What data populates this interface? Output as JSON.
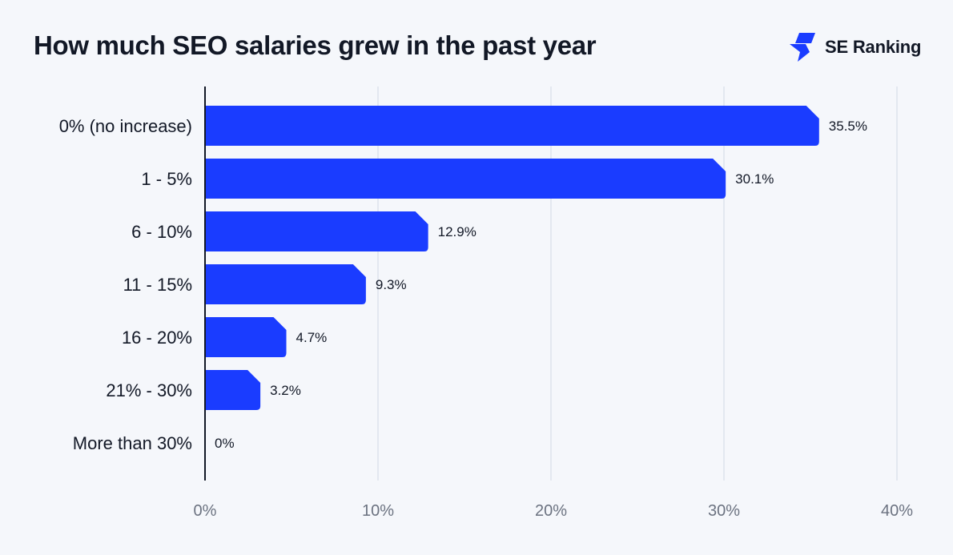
{
  "header": {
    "title": "How much SEO salaries grew in the past year",
    "brand_name": "SE Ranking",
    "brand_icon": "se-ranking-logo-icon",
    "brand_color": "#1a3cff"
  },
  "colors": {
    "bar": "#1a3cff",
    "grid": "#dde3ec",
    "axis": "#121826",
    "tick": "#6b7280",
    "text": "#121826",
    "background": "#f5f7fb"
  },
  "chart_data": {
    "type": "bar",
    "orientation": "horizontal",
    "categories": [
      "0% (no increase)",
      "1 - 5%",
      "6 - 10%",
      "11 - 15%",
      "16 - 20%",
      "21% - 30%",
      "More than 30%"
    ],
    "values": [
      35.5,
      30.1,
      12.9,
      9.3,
      4.7,
      3.2,
      0
    ],
    "value_labels": [
      "35.5%",
      "30.1%",
      "12.9%",
      "9.3%",
      "4.7%",
      "3.2%",
      "0%"
    ],
    "xticks": [
      0,
      10,
      20,
      30,
      40
    ],
    "xtick_labels": [
      "0%",
      "10%",
      "20%",
      "30%",
      "40%"
    ],
    "xlim": [
      0,
      40
    ],
    "grid": true,
    "legend": "none"
  }
}
